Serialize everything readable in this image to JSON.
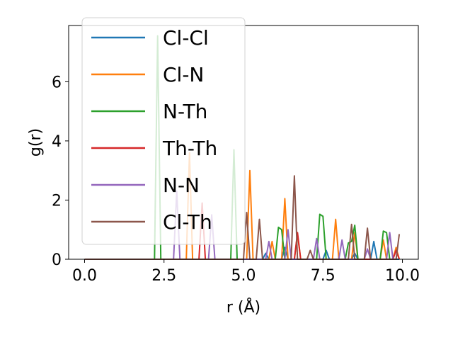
{
  "chart_data": {
    "type": "line",
    "xlabel": "r (Å)",
    "ylabel": "g(r)",
    "xlim": [
      -0.5,
      10.5
    ],
    "ylim": [
      0,
      7.9
    ],
    "xticks": [
      0.0,
      2.5,
      5.0,
      7.5,
      10.0
    ],
    "xtick_labels": [
      "0.0",
      "2.5",
      "5.0",
      "7.5",
      "10.0"
    ],
    "yticks": [
      0,
      2,
      4,
      6
    ],
    "ytick_labels": [
      "0",
      "2",
      "4",
      "6"
    ],
    "grid": false,
    "legend_position": "top-left",
    "series": [
      {
        "name": "Cl-Cl",
        "color": "#1f77b4",
        "points": [
          [
            0,
            0
          ],
          [
            5.6,
            0
          ],
          [
            5.7,
            0.2
          ],
          [
            5.8,
            0
          ],
          [
            6.2,
            0
          ],
          [
            6.3,
            0.4
          ],
          [
            6.4,
            0
          ],
          [
            7.5,
            0
          ],
          [
            7.6,
            0.3
          ],
          [
            7.7,
            0
          ],
          [
            8.4,
            0
          ],
          [
            8.5,
            0.2
          ],
          [
            8.6,
            0
          ],
          [
            9.0,
            0
          ],
          [
            9.1,
            0.6
          ],
          [
            9.2,
            0
          ],
          [
            9.9,
            0
          ]
        ]
      },
      {
        "name": "Cl-N",
        "color": "#ff7f0e",
        "points": [
          [
            0,
            0
          ],
          [
            3.2,
            0
          ],
          [
            3.3,
            3.6
          ],
          [
            3.4,
            0
          ],
          [
            5.1,
            0
          ],
          [
            5.2,
            3.0
          ],
          [
            5.3,
            0
          ],
          [
            5.8,
            0
          ],
          [
            5.9,
            0.6
          ],
          [
            6.0,
            0
          ],
          [
            6.2,
            0
          ],
          [
            6.3,
            2.05
          ],
          [
            6.4,
            0
          ],
          [
            6.6,
            0
          ],
          [
            6.7,
            0.85
          ],
          [
            6.8,
            0
          ],
          [
            7.8,
            0
          ],
          [
            7.9,
            1.35
          ],
          [
            8.0,
            0
          ],
          [
            8.4,
            0
          ],
          [
            8.5,
            0.9
          ],
          [
            8.6,
            0
          ],
          [
            9.3,
            0
          ],
          [
            9.4,
            0.65
          ],
          [
            9.5,
            0
          ],
          [
            9.7,
            0
          ],
          [
            9.8,
            0.4
          ],
          [
            9.9,
            0
          ]
        ]
      },
      {
        "name": "N-Th",
        "color": "#2ca02c",
        "points": [
          [
            0,
            0
          ],
          [
            2.2,
            0
          ],
          [
            2.3,
            7.55
          ],
          [
            2.4,
            0
          ],
          [
            4.6,
            0
          ],
          [
            4.7,
            3.7
          ],
          [
            4.8,
            0
          ],
          [
            6.0,
            0
          ],
          [
            6.1,
            1.08
          ],
          [
            6.2,
            1.0
          ],
          [
            6.3,
            0
          ],
          [
            7.3,
            0
          ],
          [
            7.4,
            1.52
          ],
          [
            7.5,
            1.45
          ],
          [
            7.6,
            0
          ],
          [
            8.2,
            0
          ],
          [
            8.3,
            0.55
          ],
          [
            8.4,
            0.6
          ],
          [
            8.5,
            1.15
          ],
          [
            8.6,
            0
          ],
          [
            9.3,
            0
          ],
          [
            9.4,
            0.95
          ],
          [
            9.5,
            0.9
          ],
          [
            9.6,
            0
          ]
        ]
      },
      {
        "name": "Th-Th",
        "color": "#d62728",
        "points": [
          [
            0,
            0
          ],
          [
            3.6,
            0
          ],
          [
            3.7,
            1.9
          ],
          [
            3.8,
            0
          ],
          [
            6.6,
            0
          ],
          [
            6.7,
            0.9
          ],
          [
            6.8,
            0
          ],
          [
            9.7,
            0
          ],
          [
            9.8,
            0.3
          ],
          [
            9.9,
            0
          ]
        ]
      },
      {
        "name": "N-N",
        "color": "#9467bd",
        "points": [
          [
            0,
            0
          ],
          [
            2.8,
            0
          ],
          [
            2.9,
            2.3
          ],
          [
            3.0,
            0
          ],
          [
            3.9,
            0
          ],
          [
            4.0,
            1.5
          ],
          [
            4.1,
            0
          ],
          [
            5.7,
            0
          ],
          [
            5.8,
            0.6
          ],
          [
            5.9,
            0
          ],
          [
            6.3,
            0
          ],
          [
            6.4,
            1.0
          ],
          [
            6.5,
            0
          ],
          [
            7.2,
            0
          ],
          [
            7.3,
            0.7
          ],
          [
            7.4,
            0
          ],
          [
            8.0,
            0
          ],
          [
            8.1,
            0.65
          ],
          [
            8.2,
            0
          ],
          [
            8.8,
            0
          ],
          [
            8.9,
            0.35
          ],
          [
            9.0,
            0
          ],
          [
            9.5,
            0
          ],
          [
            9.6,
            0.9
          ],
          [
            9.7,
            0
          ]
        ]
      },
      {
        "name": "Cl-Th",
        "color": "#8c564b",
        "points": [
          [
            0,
            0
          ],
          [
            5.0,
            0
          ],
          [
            5.1,
            1.58
          ],
          [
            5.2,
            0
          ],
          [
            5.4,
            0
          ],
          [
            5.5,
            1.35
          ],
          [
            5.6,
            0
          ],
          [
            6.5,
            0
          ],
          [
            6.6,
            2.82
          ],
          [
            6.7,
            0
          ],
          [
            7.0,
            0
          ],
          [
            7.1,
            0.3
          ],
          [
            7.2,
            0
          ],
          [
            8.3,
            0
          ],
          [
            8.4,
            1.18
          ],
          [
            8.5,
            0
          ],
          [
            8.8,
            0
          ],
          [
            8.9,
            1.05
          ],
          [
            9.0,
            0
          ],
          [
            9.8,
            0
          ],
          [
            9.9,
            0.85
          ]
        ]
      }
    ]
  }
}
